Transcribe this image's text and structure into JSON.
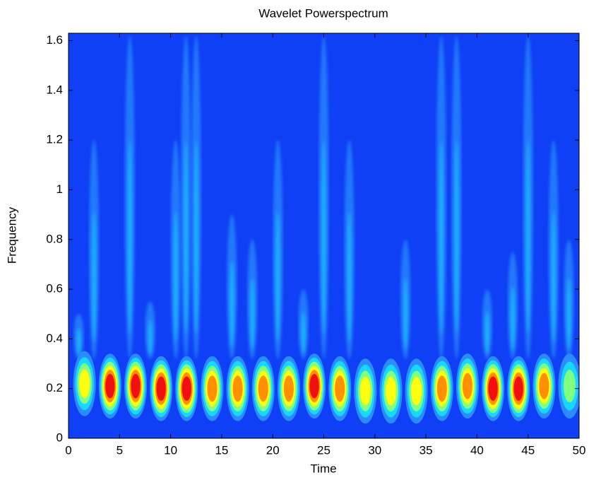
{
  "chart_data": {
    "type": "heatmap",
    "title": "Wavelet Powerspectrum",
    "x_label": "Time",
    "y_label": "Frequency",
    "x": [
      1.5,
      4,
      6.5,
      9,
      11.5,
      14,
      16.5,
      19,
      21.5,
      24,
      26.5,
      29,
      31.5,
      34,
      36.5,
      39,
      41.5,
      44,
      46.5,
      49
    ],
    "y": [
      0.22,
      0.21,
      0.21,
      0.2,
      0.2,
      0.2,
      0.2,
      0.2,
      0.2,
      0.21,
      0.2,
      0.19,
      0.19,
      0.19,
      0.2,
      0.21,
      0.2,
      0.2,
      0.21,
      0.21
    ],
    "values": [
      0.55,
      1.0,
      1.0,
      0.9,
      0.85,
      0.8,
      0.75,
      0.75,
      0.8,
      0.85,
      0.7,
      0.65,
      0.6,
      0.6,
      0.7,
      0.75,
      0.85,
      0.85,
      0.7,
      0.5
    ],
    "streaks": {
      "x": [
        1,
        2.5,
        6,
        8,
        10.5,
        11.5,
        12.5,
        16,
        18,
        20.5,
        23,
        25,
        27.5,
        33,
        36.5,
        38,
        41,
        43.5,
        45,
        47.5,
        49
      ],
      "top": [
        0.5,
        1.2,
        1.62,
        0.55,
        1.2,
        1.62,
        1.62,
        0.9,
        0.8,
        1.2,
        0.6,
        1.62,
        1.2,
        0.8,
        1.62,
        1.62,
        0.6,
        0.75,
        1.62,
        1.2,
        0.8
      ]
    },
    "background": "#1040f5",
    "colors": [
      "#2a8cff",
      "#18d8ff",
      "#80ff80",
      "#ffff10",
      "#ff9000",
      "#f01010"
    ],
    "xlim": [
      0,
      50
    ],
    "ylim": [
      0,
      1.63
    ],
    "xticks": [
      0,
      5,
      10,
      15,
      20,
      25,
      30,
      35,
      40,
      45,
      50
    ],
    "yticks": [
      0,
      0.2,
      0.4,
      0.6,
      0.8,
      1,
      1.2,
      1.4,
      1.6
    ]
  }
}
